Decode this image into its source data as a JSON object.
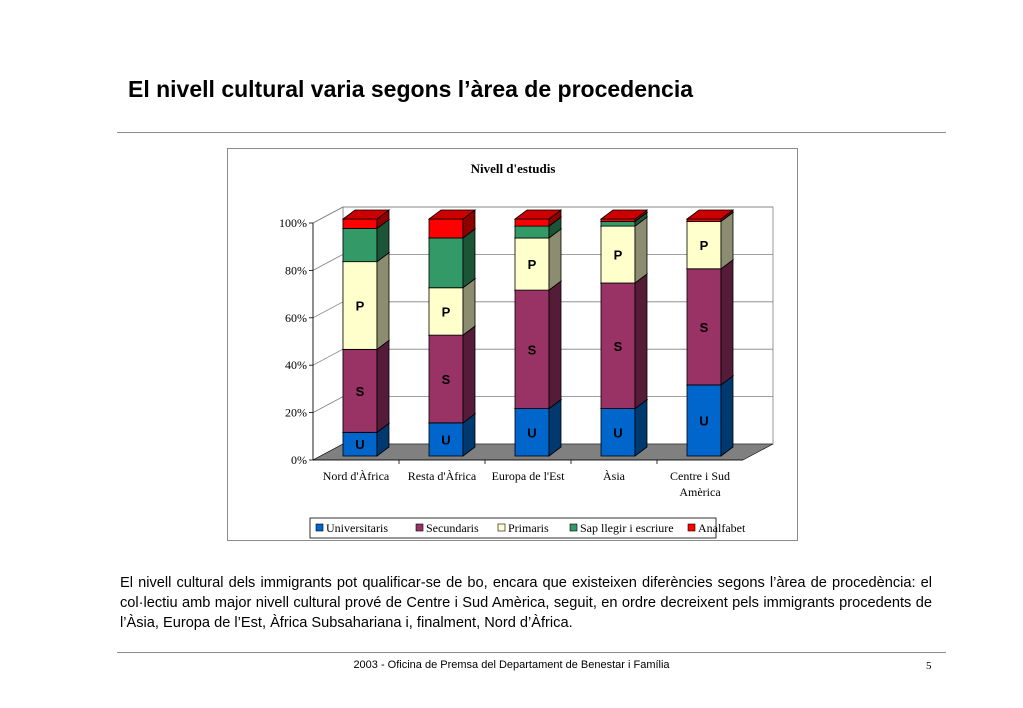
{
  "slide": {
    "title": "El nivell cultural varia segons l’àrea de procedencia",
    "body": "El nivell cultural dels immigrants pot qualificar-se de bo, encara que existeixen diferències segons l’àrea de procedència: el col·lectiu amb major nivell cultural prové de Centre i Sud Amèrica, seguit, en ordre decreixent pels immigrants procedents de l’Àsia, Europa de l’Est, Àfrica Subsahariana i, finalment, Nord d’Àfrica.",
    "footer": "2003 - Oficina de Premsa del Departament de Benestar i Família",
    "page_number": "5"
  },
  "chart_data": {
    "type": "bar",
    "stacked": true,
    "percent": true,
    "three_d": true,
    "title": "Nivell d'estudis",
    "categories": [
      "Nord d'Àfrica",
      "Resta d'Àfrica",
      "Europa de l'Est",
      "Àsia",
      "Centre i Sud Amèrica"
    ],
    "series": [
      {
        "name": "Universitaris",
        "color": "#0066cc",
        "bar_label": "U",
        "values": [
          10,
          14,
          20,
          20,
          30
        ]
      },
      {
        "name": "Secundaris",
        "color": "#993366",
        "bar_label": "S",
        "values": [
          35,
          37,
          50,
          53,
          49
        ]
      },
      {
        "name": "Primaris",
        "color": "#ffffcc",
        "bar_label": "P",
        "values": [
          37,
          20,
          22,
          24,
          20
        ]
      },
      {
        "name": "Sap llegir i escriure",
        "color": "#339966",
        "bar_label": "",
        "values": [
          14,
          21,
          5,
          2,
          0
        ]
      },
      {
        "name": "Analfabet",
        "color": "#ff0000",
        "bar_label": "",
        "values": [
          4,
          8,
          3,
          1,
          1
        ]
      }
    ],
    "y_ticks": [
      "0%",
      "20%",
      "40%",
      "60%",
      "80%",
      "100%"
    ],
    "ylim": [
      0,
      100
    ],
    "grid": true,
    "legend": "bottom"
  }
}
